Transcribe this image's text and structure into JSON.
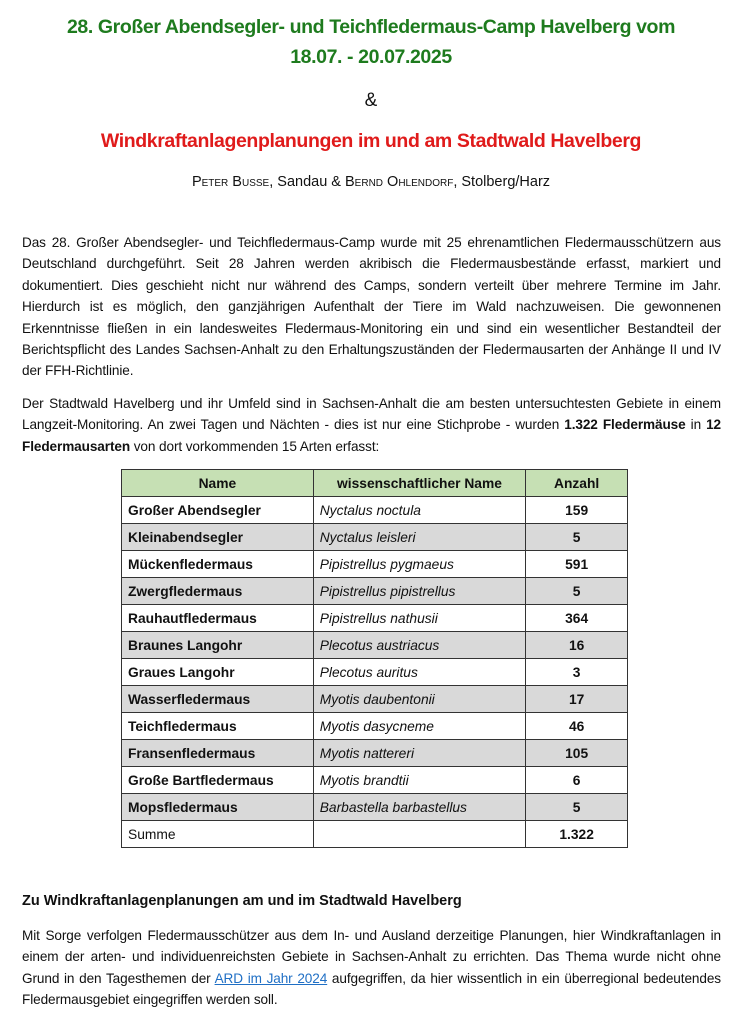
{
  "title_line1": "28. Großer Abendsegler- und Teichfledermaus-Camp Havelberg vom",
  "title_line2": "18.07. - 20.07.2025",
  "ampersand": "&",
  "subtitle": "Windkraftanlagenplanungen im und am Stadtwald Havelberg",
  "authors": {
    "a1": "Peter Busse",
    "a1_place": ", Sandau & ",
    "a2": "Bernd Ohlendorf",
    "a2_place": ", Stolberg/Harz"
  },
  "para1": "Das 28. Großer Abendsegler- und Teichfledermaus-Camp wurde mit 25 ehrenamtlichen Fledermausschützern aus Deutschland durchgeführt. Seit 28 Jahren werden akribisch die Fledermausbestände erfasst, markiert und dokumentiert. Dies geschieht nicht nur während des Camps, sondern verteilt über mehrere Termine im Jahr. Hierdurch ist es möglich, den ganzjährigen Aufenthalt der Tiere im Wald nachzuweisen. Die gewonnenen Erkenntnisse fließen in ein landesweites Fledermaus-Monitoring ein und sind ein wesentlicher Bestandteil der Berichtspflicht des Landes Sachsen-Anhalt zu den Erhaltungszuständen der Fledermausarten der Anhänge II und IV der FFH-Richtlinie.",
  "para2": {
    "t1": "Der Stadtwald Havelberg und ihr Umfeld sind in Sachsen-Anhalt die am besten untersuchtesten Gebiete in einem Langzeit-Monitoring. An zwei Tagen und Nächten - dies ist nur eine Stichprobe - wurden ",
    "b1": "1.322 Fledermäuse",
    "t2": " in ",
    "b2": "12 Fledermausarten",
    "t3": " von dort vorkommenden 15 Arten erfasst:"
  },
  "table": {
    "headers": [
      "Name",
      "wissenschaftlicher Name",
      "Anzahl"
    ],
    "rows": [
      [
        "Großer Abendsegler",
        "Nyctalus noctula",
        "159"
      ],
      [
        "Kleinabendsegler",
        "Nyctalus leisleri",
        "5"
      ],
      [
        "Mückenfledermaus",
        "Pipistrellus pygmaeus",
        "591"
      ],
      [
        "Zwergfledermaus",
        "Pipistrellus pipistrellus",
        "5"
      ],
      [
        "Rauhautfledermaus",
        "Pipistrellus nathusii",
        "364"
      ],
      [
        "Braunes Langohr",
        "Plecotus austriacus",
        "16"
      ],
      [
        "Graues Langohr",
        "Plecotus auritus",
        "3"
      ],
      [
        "Wasserfledermaus",
        "Myotis daubentonii",
        "17"
      ],
      [
        "Teichfledermaus",
        "Myotis dasycneme",
        "46"
      ],
      [
        "Fransenfledermaus",
        "Myotis nattereri",
        "105"
      ],
      [
        "Große Bartfledermaus",
        "Myotis brandtii",
        "6"
      ],
      [
        "Mopsfledermaus",
        "Barbastella barbastellus",
        "5"
      ]
    ],
    "total_label": "Summe",
    "total": "1.322"
  },
  "section_heading": "Zu Windkraftanlagenplanungen am und im Stadtwald Havelberg",
  "para3": {
    "t1": "Mit Sorge verfolgen Fledermausschützer aus dem In- und Ausland derzeitige Planungen, hier Windkraftanlagen in einem der arten- und individuenreichsten Gebiete in Sachsen-Anhalt zu errichten. Das Thema wurde nicht ohne Grund in den Tagesthemen der ",
    "link": "ARD im Jahr 2024",
    "t2": " aufgegriffen, da hier wissentlich in ein überregional bedeutendes Fledermausgebiet eingegriffen werden soll."
  },
  "colors": {
    "title": "#1e7b1e",
    "subtitle": "#e01b1b",
    "table_header": "#c6e0b4",
    "row_alt": "#d9d9d9",
    "link": "#1f6fc5"
  }
}
